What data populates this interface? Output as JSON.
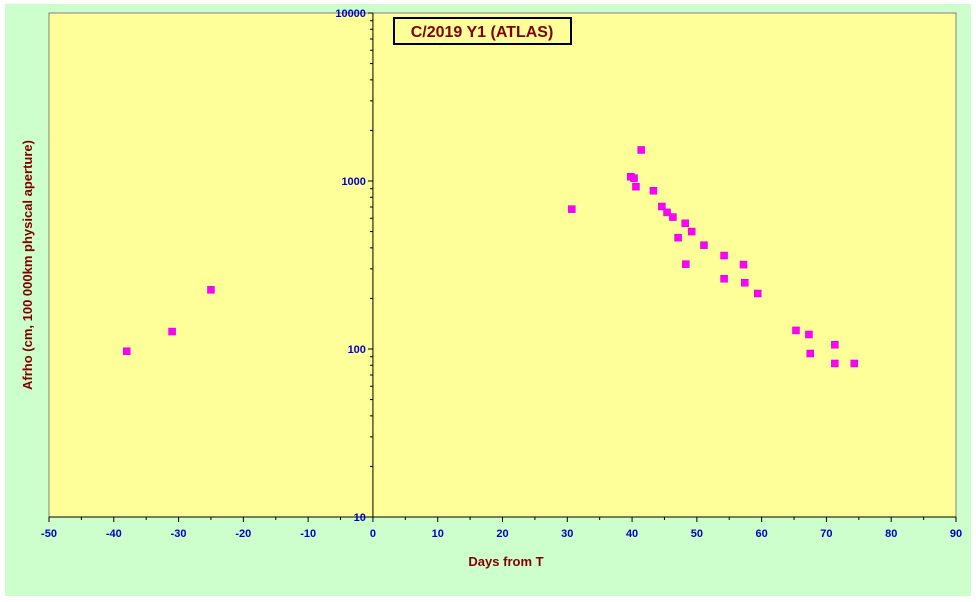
{
  "chart_data": {
    "type": "scatter",
    "title": "C/2019 Y1 (ATLAS)",
    "xlabel": "Days from  T",
    "ylabel": "Afrho (cm, 100 000km physical aperture)",
    "xlim": [
      -50,
      90
    ],
    "ylim": [
      10,
      10000
    ],
    "y_scale": "log",
    "x_ticks": [
      "-50",
      "-40",
      "-30",
      "-20",
      "-10",
      "0",
      "10",
      "20",
      "30",
      "40",
      "50",
      "60",
      "70",
      "80",
      "90"
    ],
    "y_ticks": [
      "10",
      "100",
      "1000",
      "10000"
    ],
    "grid": false,
    "legend": "none",
    "colors": {
      "plot_background": "#ffff99",
      "outer_background": "#ccffcc",
      "marker": "#ff00ff",
      "tick_labels": "#0000cc",
      "axis_titles": "#800000"
    },
    "points": [
      {
        "x": -38,
        "y": 97
      },
      {
        "x": -31,
        "y": 127
      },
      {
        "x": -25,
        "y": 225
      },
      {
        "x": 30.7,
        "y": 680
      },
      {
        "x": 39.8,
        "y": 1060
      },
      {
        "x": 40.3,
        "y": 1040
      },
      {
        "x": 40.6,
        "y": 925
      },
      {
        "x": 41.4,
        "y": 1530
      },
      {
        "x": 43.3,
        "y": 875
      },
      {
        "x": 44.6,
        "y": 705
      },
      {
        "x": 45.4,
        "y": 650
      },
      {
        "x": 46.3,
        "y": 610
      },
      {
        "x": 47.1,
        "y": 460
      },
      {
        "x": 48.2,
        "y": 560
      },
      {
        "x": 48.3,
        "y": 320
      },
      {
        "x": 49.2,
        "y": 500
      },
      {
        "x": 51.1,
        "y": 415
      },
      {
        "x": 54.2,
        "y": 360
      },
      {
        "x": 54.2,
        "y": 262
      },
      {
        "x": 57.2,
        "y": 318
      },
      {
        "x": 57.4,
        "y": 248
      },
      {
        "x": 59.4,
        "y": 214
      },
      {
        "x": 65.3,
        "y": 129
      },
      {
        "x": 67.3,
        "y": 122
      },
      {
        "x": 67.5,
        "y": 94
      },
      {
        "x": 71.3,
        "y": 106
      },
      {
        "x": 71.3,
        "y": 82
      },
      {
        "x": 74.3,
        "y": 82
      }
    ]
  }
}
